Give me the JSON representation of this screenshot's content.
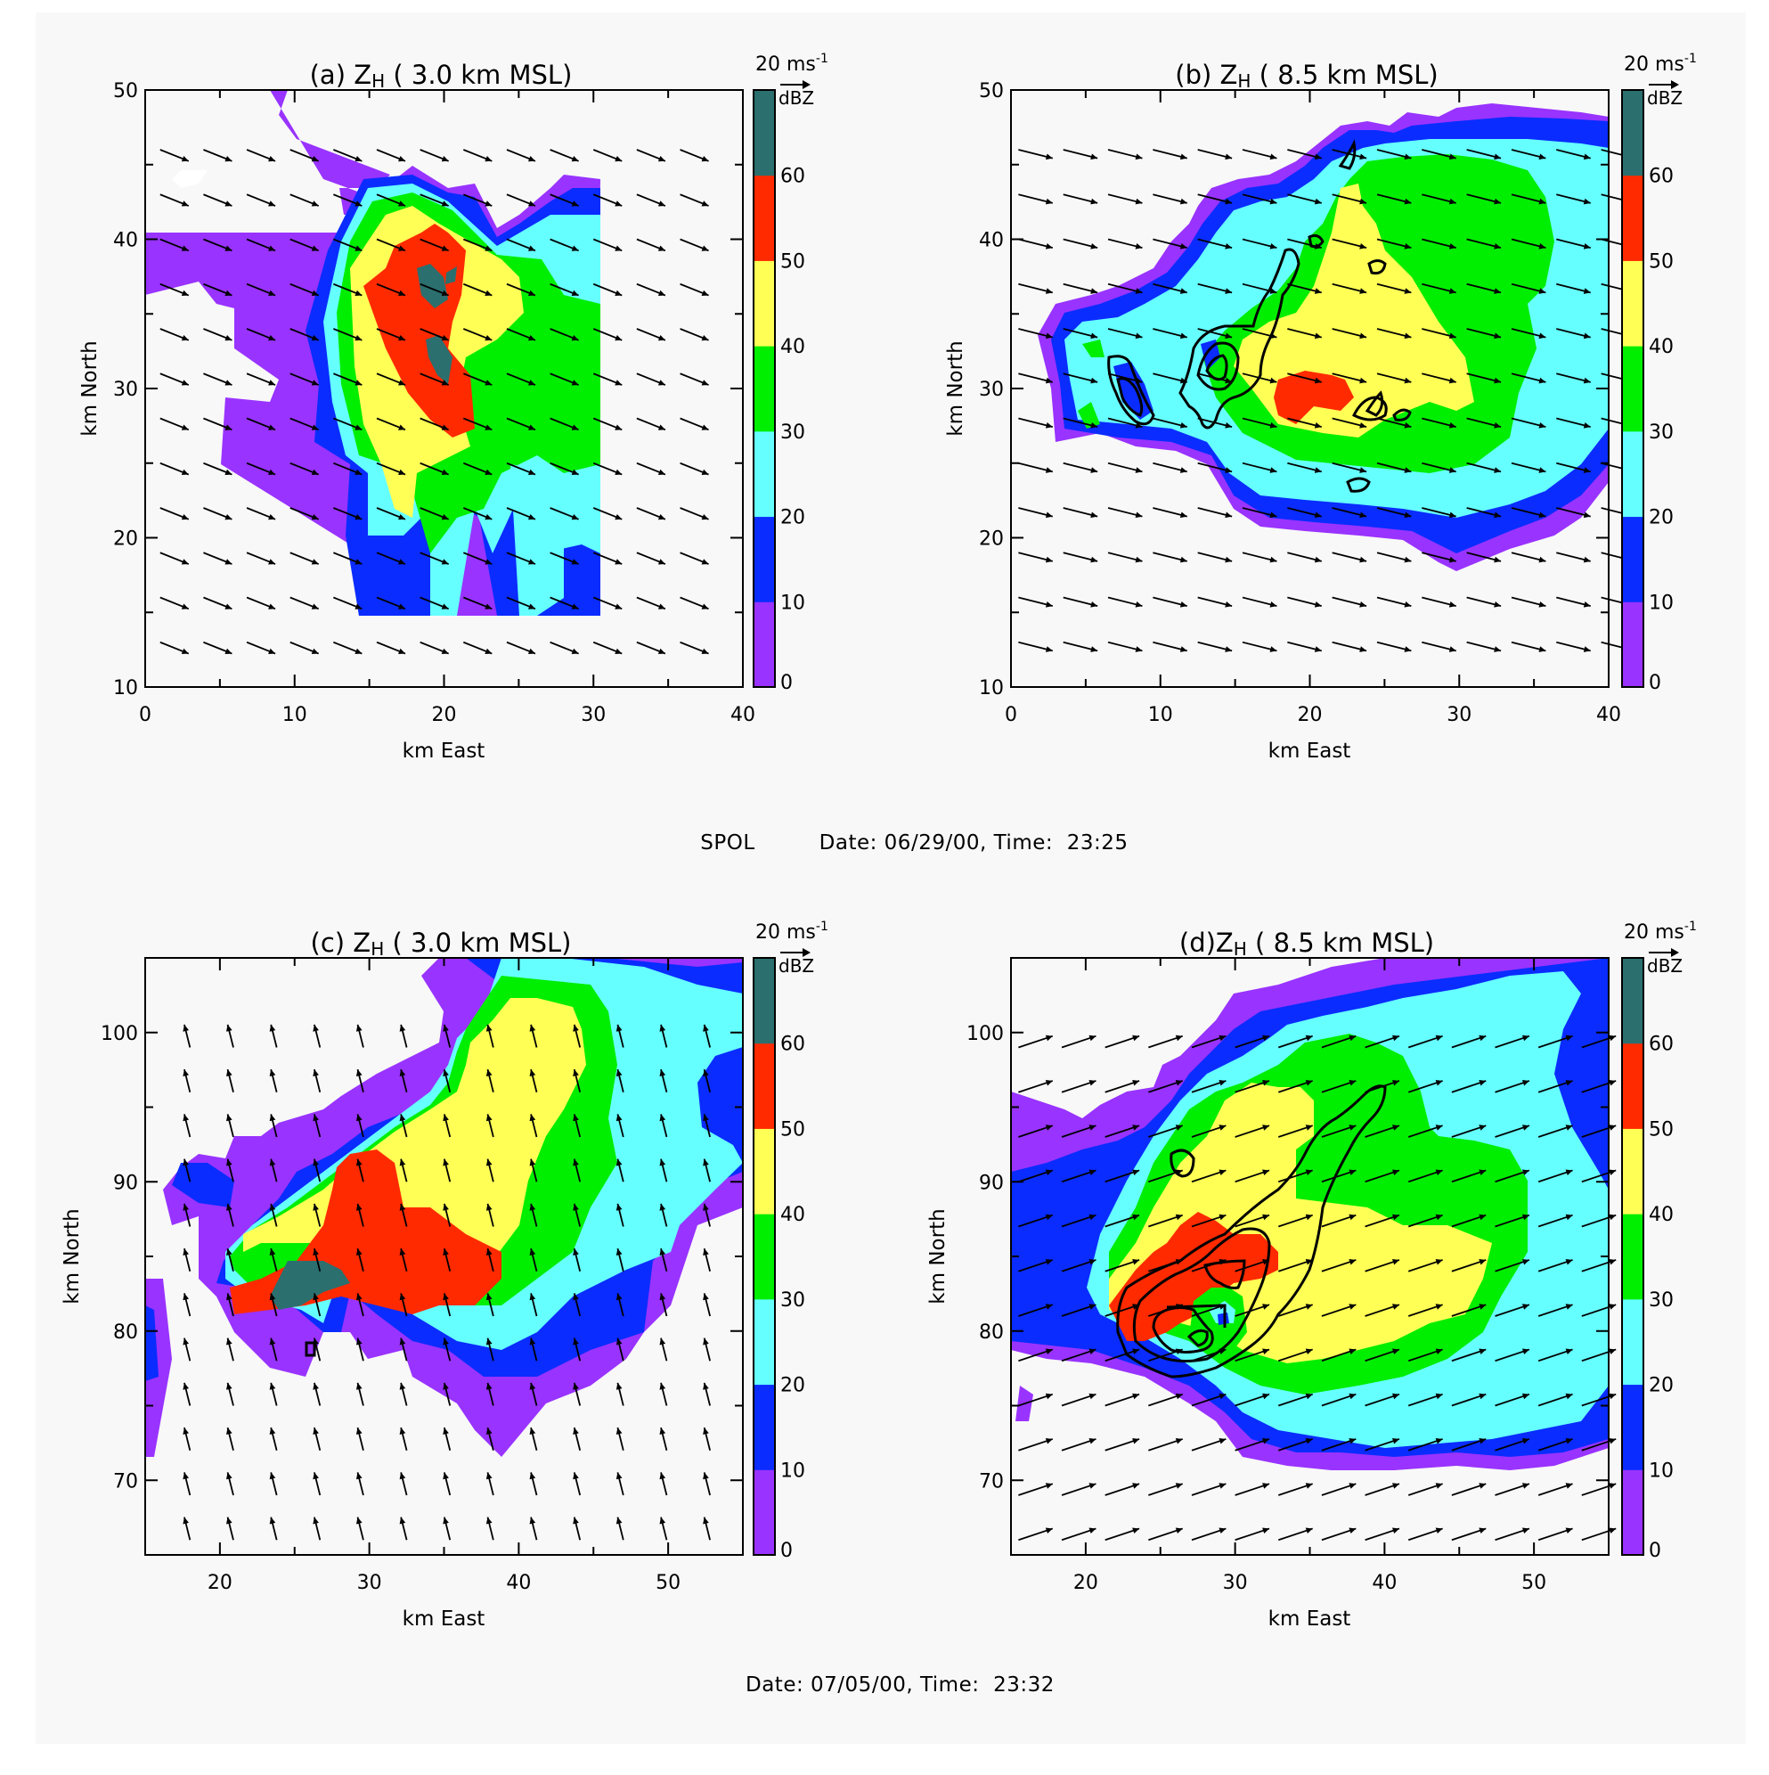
{
  "figure": {
    "caption_top": "SPOL      Date: 06/29/00, Time:  23:25",
    "caption_top_parts": {
      "radar": "SPOL",
      "date_time": "Date: 06/29/00, Time:  23:25"
    },
    "caption_bottom": "Date: 07/05/00, Time:  23:32",
    "colors": {
      "background": "#f8f8f8",
      "band_0_10": "#9933ff",
      "band_10_20": "#0a2cff",
      "band_20_30": "#66ffff",
      "band_30_40": "#00ee00",
      "band_40_50": "#ffff55",
      "band_50_60": "#ff2a00",
      "band_60_plus": "#2b6f6f"
    }
  },
  "chart_data": [
    {
      "type": "heatmap",
      "panel": "a",
      "title": "(a) Z_H (  3.0 km MSL)",
      "title_parts": {
        "prefix": "(a) Z",
        "sub": "H",
        "suffix": " (  3.0 km MSL)"
      },
      "xlabel": "km East",
      "ylabel": "km North",
      "xlim": [
        0,
        40
      ],
      "ylim": [
        10,
        50
      ],
      "xticks": [
        0,
        10,
        20,
        30,
        40
      ],
      "yticks": [
        10,
        20,
        30,
        40,
        50
      ],
      "date": "06/29/00",
      "time": "23:25",
      "radar": "SPOL",
      "colorbar": {
        "label": "dBZ",
        "ticks": [
          0,
          10,
          20,
          30,
          40,
          50,
          60
        ]
      },
      "vector_scale": "20 ms-1",
      "max_reflectivity_dBZ": ">60",
      "features": "Two >60 dBZ cores near (19,38) and (20,32); 50-60 dBZ region extending from (17,40) to (25,24)",
      "wind": {
        "x0": 1,
        "dx": 2.9,
        "y0": 13,
        "dy": 3,
        "nx": 13,
        "ny": 12,
        "u": 10,
        "v": -4
      }
    },
    {
      "type": "heatmap",
      "panel": "b",
      "title": "(b) Z_H (  8.5 km MSL)",
      "title_parts": {
        "prefix": "(b) Z",
        "sub": "H",
        "suffix": " (  8.5 km MSL)"
      },
      "xlabel": "km East",
      "ylabel": "km North",
      "xlim": [
        0,
        40
      ],
      "ylim": [
        10,
        50
      ],
      "xticks": [
        0,
        10,
        20,
        30,
        40
      ],
      "yticks": [
        10,
        20,
        30,
        40,
        50
      ],
      "date": "06/29/00",
      "time": "23:25",
      "radar": "SPOL",
      "colorbar": {
        "label": "dBZ",
        "ticks": [
          0,
          10,
          20,
          30,
          40,
          50,
          60
        ]
      },
      "vector_scale": "20 ms-1",
      "max_reflectivity_dBZ": "50-60",
      "features": "Black contour overlays near (13,30), (7,27), (19,25); 50-60 dBZ patch near (18,24)",
      "wind": {
        "x0": 0.5,
        "dx": 3,
        "y0": 13,
        "dy": 3,
        "nx": 14,
        "ny": 12,
        "u": 12,
        "v": -3
      }
    },
    {
      "type": "heatmap",
      "panel": "c",
      "title": "(c) Z_H (  3.0 km MSL)",
      "title_parts": {
        "prefix": "(c) Z",
        "sub": "H",
        "suffix": " (  3.0 km MSL)"
      },
      "xlabel": "km East",
      "ylabel": "km North",
      "xlim": [
        15,
        55
      ],
      "ylim": [
        65,
        105
      ],
      "xticks": [
        20,
        30,
        40,
        50
      ],
      "yticks": [
        70,
        80,
        90,
        100
      ],
      "date": "07/05/00",
      "time": "23:32",
      "colorbar": {
        "label": "dBZ",
        "ticks": [
          0,
          10,
          20,
          30,
          40,
          50,
          60
        ]
      },
      "vector_scale": "20 ms-1",
      "max_reflectivity_dBZ": ">60",
      "features": ">60 dBZ core near (28,82); 50-60 dBZ region from (23,80) to (39,85); 40-50 dBZ extending NE to (43,99)",
      "wind": {
        "x0": 18,
        "dx": 2.9,
        "y0": 66,
        "dy": 3,
        "nx": 13,
        "ny": 12,
        "u": -2,
        "v": 8
      }
    },
    {
      "type": "heatmap",
      "panel": "d",
      "title": "(d)Z_H (  8.5 km MSL)",
      "title_parts": {
        "prefix": "(d)Z",
        "sub": "H",
        "suffix": " (  8.5 km MSL)"
      },
      "xlabel": "km East",
      "ylabel": "km North",
      "xlim": [
        15,
        55
      ],
      "ylim": [
        65,
        105
      ],
      "xticks": [
        20,
        30,
        40,
        50
      ],
      "yticks": [
        70,
        80,
        90,
        100
      ],
      "date": "07/05/00",
      "time": "23:32",
      "colorbar": {
        "label": "dBZ",
        "ticks": [
          0,
          10,
          20,
          30,
          40,
          50,
          60
        ]
      },
      "vector_scale": "20 ms-1",
      "max_reflectivity_dBZ": "50-60",
      "features": "50-60 dBZ arc near (25-32,78-85); black contours around (28,77) extending NE to (43,94)",
      "wind": {
        "x0": 15.5,
        "dx": 2.9,
        "y0": 66,
        "dy": 3,
        "nx": 14,
        "ny": 12,
        "u": 12,
        "v": 4
      }
    }
  ]
}
